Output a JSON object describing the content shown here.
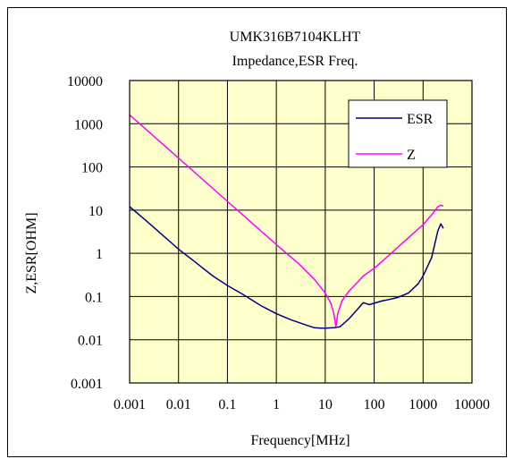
{
  "chart_data": {
    "type": "line",
    "title": "UMK316B7104KLHT",
    "subtitle": "Impedance,ESR Freq.",
    "xlabel": "Frequency[MHz]",
    "ylabel": "Z,ESR[OHM]",
    "xscale": "log",
    "yscale": "log",
    "xlim": [
      0.001,
      10000
    ],
    "ylim": [
      0.001,
      10000
    ],
    "xticks": [
      0.001,
      0.01,
      0.1,
      1,
      10,
      100,
      1000,
      10000
    ],
    "xtick_labels": [
      "0.001",
      "0.01",
      "0.1",
      "1",
      "10",
      "100",
      "1000",
      "10000"
    ],
    "yticks": [
      10000,
      1000,
      100,
      10,
      1,
      0.1,
      0.01,
      0.001
    ],
    "ytick_labels": [
      "10000",
      "1000",
      "100",
      "10",
      "1",
      "0.1",
      "0.01",
      "0.001"
    ],
    "grid": true,
    "plot_background": "#ffffcc",
    "legend_position": "top-right",
    "series": [
      {
        "name": "ESR",
        "color": "#000080",
        "points": [
          [
            0.001,
            12
          ],
          [
            0.002,
            6.2
          ],
          [
            0.005,
            2.5
          ],
          [
            0.01,
            1.25
          ],
          [
            0.02,
            0.68
          ],
          [
            0.05,
            0.3
          ],
          [
            0.1,
            0.18
          ],
          [
            0.2,
            0.115
          ],
          [
            0.5,
            0.06
          ],
          [
            1,
            0.04
          ],
          [
            2,
            0.029
          ],
          [
            4,
            0.022
          ],
          [
            6,
            0.019
          ],
          [
            8,
            0.0185
          ],
          [
            10,
            0.0185
          ],
          [
            15,
            0.019
          ],
          [
            20,
            0.02
          ],
          [
            30,
            0.03
          ],
          [
            45,
            0.05
          ],
          [
            60,
            0.072
          ],
          [
            80,
            0.065
          ],
          [
            100,
            0.07
          ],
          [
            150,
            0.08
          ],
          [
            200,
            0.085
          ],
          [
            300,
            0.095
          ],
          [
            500,
            0.12
          ],
          [
            800,
            0.2
          ],
          [
            1000,
            0.3
          ],
          [
            1500,
            0.8
          ],
          [
            2000,
            3.3
          ],
          [
            2300,
            4.8
          ],
          [
            2600,
            3.8
          ]
        ]
      },
      {
        "name": "Z",
        "color": "#ff00ff",
        "points": [
          [
            0.001,
            1600
          ],
          [
            0.01,
            160
          ],
          [
            0.1,
            16
          ],
          [
            1,
            1.6
          ],
          [
            3,
            0.55
          ],
          [
            6,
            0.25
          ],
          [
            10,
            0.12
          ],
          [
            13,
            0.07
          ],
          [
            15,
            0.04
          ],
          [
            16.5,
            0.02
          ],
          [
            18,
            0.04
          ],
          [
            22,
            0.08
          ],
          [
            30,
            0.13
          ],
          [
            45,
            0.21
          ],
          [
            60,
            0.3
          ],
          [
            100,
            0.45
          ],
          [
            200,
            0.9
          ],
          [
            500,
            2.3
          ],
          [
            1000,
            4.6
          ],
          [
            1500,
            7.8
          ],
          [
            2000,
            12
          ],
          [
            2300,
            13
          ],
          [
            2600,
            12.5
          ]
        ]
      }
    ]
  }
}
